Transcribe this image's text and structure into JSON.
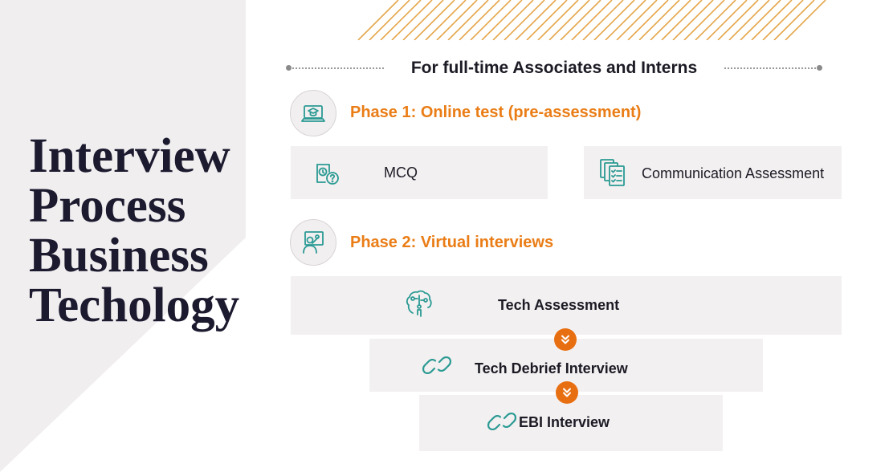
{
  "title_lines": [
    "Interview",
    "Process",
    "Business",
    "Techology"
  ],
  "subtitle": "For full-time Associates and Interns",
  "phase1": {
    "title": "Phase 1: Online test (pre-assessment)",
    "icon": "laptop-graduation-cap-icon",
    "cards": [
      {
        "label": "MCQ",
        "icon": "stopwatch-question-icon"
      },
      {
        "label": "Communication Assessment",
        "icon": "documents-checklist-icon"
      }
    ]
  },
  "phase2": {
    "title": "Phase 2: Virtual interviews",
    "icon": "presenter-screen-icon",
    "steps": [
      {
        "label": "Tech Assessment",
        "icon": "brain-circuit-icon"
      },
      {
        "label": "Tech Debrief Interview",
        "icon": "chain-link-icon"
      },
      {
        "label": "EBI Interview",
        "icon": "chain-link-icon"
      }
    ]
  },
  "colors": {
    "accent": "#ea7d16",
    "arrow": "#e86f11",
    "icon": "#2a9a93",
    "card": "#f3f0f1",
    "band": "#f1eef0",
    "title": "#1c1a2e"
  }
}
